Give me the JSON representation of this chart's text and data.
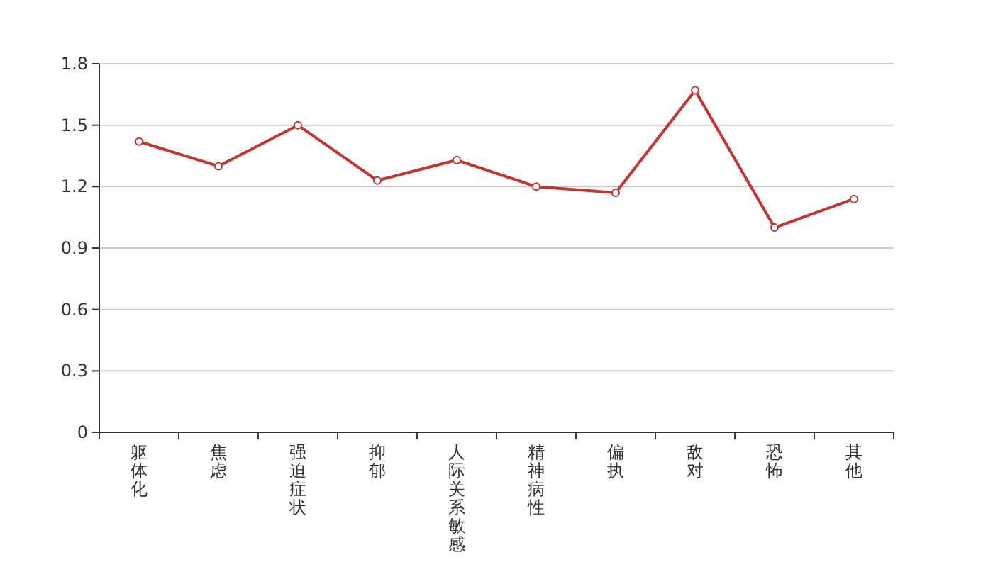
{
  "chart_data": {
    "type": "line",
    "categories": [
      "躯体化",
      "焦虑",
      "强迫症状",
      "抑郁",
      "人际关系敏感",
      "精神病性",
      "偏执",
      "敌对",
      "恐怖",
      "其他"
    ],
    "series": [
      {
        "color": "#c23531",
        "values": [
          1.42,
          1.3,
          1.5,
          1.23,
          1.33,
          1.2,
          1.17,
          1.67,
          1.0,
          1.14
        ]
      }
    ],
    "ylim": [
      0,
      1.8
    ],
    "yticks": [
      0,
      0.3,
      0.6,
      0.9,
      1.2,
      1.5,
      1.8
    ],
    "grid": "y",
    "marker": "circle"
  }
}
